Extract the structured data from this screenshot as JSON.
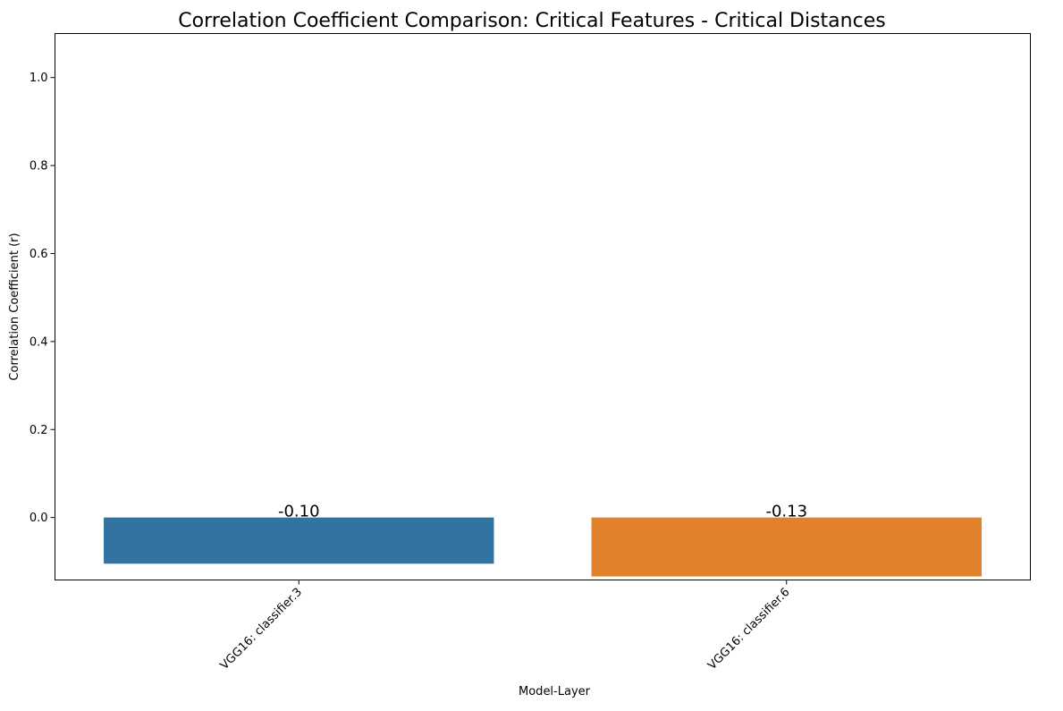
{
  "chart_data": {
    "type": "bar",
    "title": "Correlation Coefficient Comparison: Critical Features - Critical Distances",
    "xlabel": "Model-Layer",
    "ylabel": "Correlation Coefficient (r)",
    "categories": [
      "VGG16: classifier.3",
      "VGG16: classifier.6"
    ],
    "values": [
      -0.105,
      -0.134
    ],
    "value_labels": [
      "-0.10",
      "-0.13"
    ],
    "colors": [
      "#3274a1",
      "#e1812c"
    ],
    "ylim": [
      -0.142,
      1.1
    ],
    "yticks": [
      0.0,
      0.2,
      0.4,
      0.6,
      0.8,
      1.0
    ],
    "ytick_labels": [
      "0.0",
      "0.2",
      "0.4",
      "0.6",
      "0.8",
      "1.0"
    ],
    "grid": false,
    "legend": "none"
  }
}
